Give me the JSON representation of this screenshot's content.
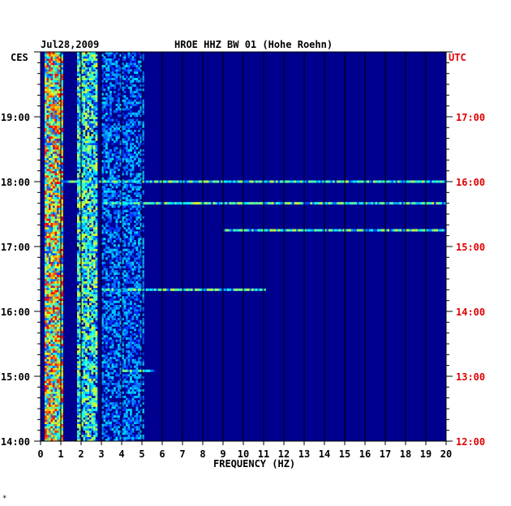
{
  "chart_data": {
    "type": "heatmap",
    "title_left": "Jul28,2009",
    "title_center": "HROE HHZ BW 01 (Hohe Roehn)",
    "left_tz": "CES",
    "right_tz": "UTC",
    "xlabel": "FREQUENCY (HZ)",
    "xlim": [
      0,
      20
    ],
    "x_ticks": [
      "0",
      "1",
      "2",
      "3",
      "4",
      "5",
      "6",
      "7",
      "8",
      "9",
      "10",
      "11",
      "12",
      "13",
      "14",
      "15",
      "16",
      "17",
      "18",
      "19",
      "20"
    ],
    "left_time_ticks": [
      "14:00",
      "15:00",
      "16:00",
      "17:00",
      "18:00",
      "19:00"
    ],
    "right_time_ticks": [
      "12:00",
      "13:00",
      "14:00",
      "15:00",
      "16:00",
      "17:00"
    ],
    "left_time_range_hours": [
      14,
      20
    ],
    "corner_mark": "*",
    "colors": {
      "background": "#00008f",
      "label_red": "#e00000",
      "label_black": "#000000"
    },
    "energy_bands": [
      {
        "freq_hz": [
          0.2,
          1.0
        ],
        "intensity": "high"
      },
      {
        "freq_hz": [
          1.8,
          2.8
        ],
        "intensity": "medium"
      },
      {
        "freq_hz": [
          3.0,
          5.0
        ],
        "intensity": "low"
      }
    ],
    "horizontal_lines": [
      {
        "time": "18:00",
        "freq_hz": [
          1,
          20
        ],
        "intensity": "medium"
      },
      {
        "time": "17:40",
        "freq_hz": [
          3,
          20
        ],
        "intensity": "medium"
      },
      {
        "time": "17:15",
        "freq_hz": [
          9,
          20
        ],
        "intensity": "medium"
      },
      {
        "time": "16:20",
        "freq_hz": [
          3,
          11
        ],
        "intensity": "medium"
      },
      {
        "time": "15:05",
        "freq_hz": [
          4,
          5.5
        ],
        "intensity": "medium"
      }
    ]
  }
}
